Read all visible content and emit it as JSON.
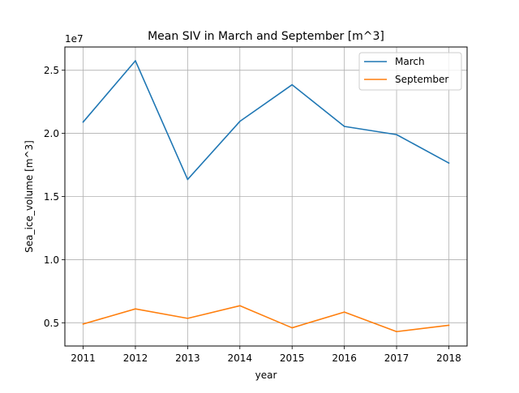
{
  "chart_data": {
    "type": "line",
    "title": "Mean SIV in March and September [m^3]",
    "xlabel": "year",
    "ylabel": "Sea_ice_volume [m^3]",
    "offset_label": "1e7",
    "x": [
      2011,
      2012,
      2013,
      2014,
      2015,
      2016,
      2017,
      2018
    ],
    "x_tick_labels": [
      "2011",
      "2012",
      "2013",
      "2014",
      "2015",
      "2016",
      "2017",
      "2018"
    ],
    "y_ticks": [
      5000000,
      10000000,
      15000000,
      20000000,
      25000000
    ],
    "y_tick_labels": [
      "0.5",
      "1.0",
      "1.5",
      "2.0",
      "2.5"
    ],
    "xlim": [
      2010.65,
      2018.35
    ],
    "ylim": [
      3160000,
      26840000
    ],
    "grid": true,
    "legend_position": "top-right",
    "series": [
      {
        "name": "March",
        "color": "#1f77b4",
        "values": [
          20900000,
          25750000,
          16350000,
          20950000,
          23850000,
          20550000,
          19900000,
          17650000
        ]
      },
      {
        "name": "September",
        "color": "#ff7f0e",
        "values": [
          4900000,
          6100000,
          5350000,
          6350000,
          4600000,
          5850000,
          4300000,
          4800000
        ]
      }
    ]
  }
}
